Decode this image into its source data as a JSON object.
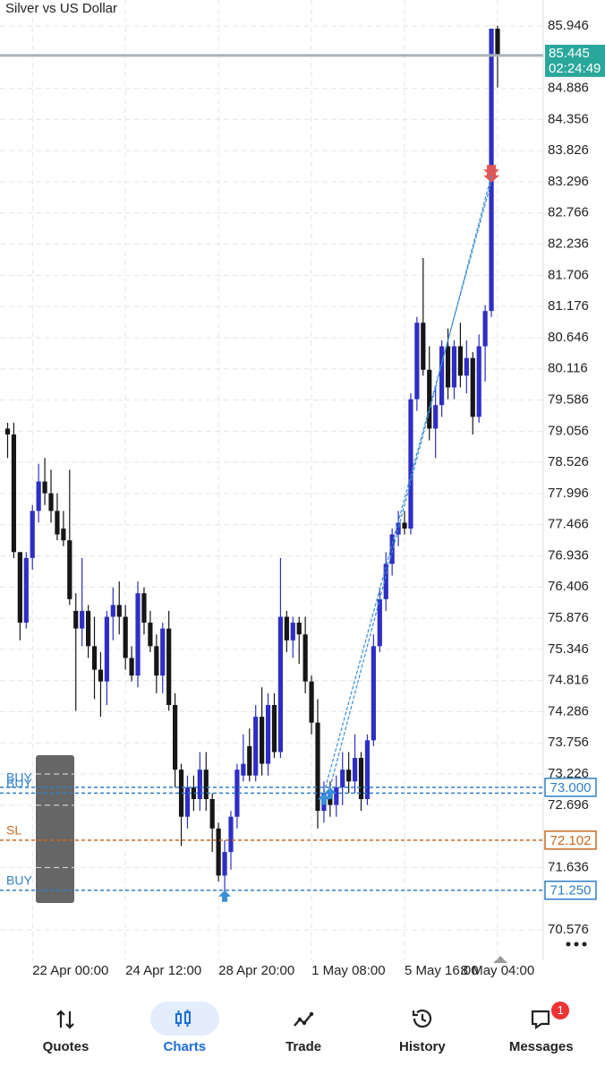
{
  "chart_data": {
    "type": "candlestick",
    "title": "Silver vs US Dollar",
    "categories": [
      null,
      null,
      null,
      null,
      "22 Apr 00:00",
      null,
      null,
      null,
      null,
      null,
      null,
      null,
      null,
      null,
      null,
      null,
      null,
      null,
      null,
      "24 Apr 12:00",
      null,
      null,
      null,
      null,
      null,
      null,
      null,
      null,
      null,
      null,
      null,
      null,
      null,
      null,
      "28 Apr 20:00",
      null,
      null,
      null,
      null,
      null,
      null,
      null,
      null,
      null,
      null,
      null,
      null,
      null,
      null,
      "1 May 08:00",
      null,
      null,
      null,
      null,
      null,
      null,
      null,
      null,
      null,
      null,
      null,
      null,
      null,
      null,
      "5 May 16:00",
      null,
      null,
      null,
      null,
      null,
      null,
      null,
      null,
      null,
      null,
      null,
      null,
      null,
      null,
      "8 May 04:00"
    ],
    "open": [
      79.1,
      79.0,
      77.0,
      75.8,
      76.9,
      77.7,
      78.2,
      78.0,
      77.7,
      77.4,
      77.2,
      76.0,
      75.7,
      76.0,
      75.4,
      75.0,
      74.8,
      75.9,
      76.1,
      75.9,
      75.2,
      74.9,
      76.3,
      75.8,
      75.4,
      74.9,
      75.7,
      74.4,
      73.3,
      72.5,
      73.0,
      72.8,
      73.3,
      72.8,
      72.3,
      71.5,
      71.9,
      72.5,
      73.2,
      73.7,
      73.2,
      74.2,
      73.4,
      74.4,
      73.6,
      75.9,
      75.5,
      75.8,
      75.6,
      74.8,
      74.1,
      72.6,
      72.9,
      72.7,
      73.0,
      73.3,
      73.1,
      73.5,
      72.8,
      73.8,
      75.4,
      76.2,
      76.8,
      77.3,
      77.5,
      77.4,
      79.6,
      80.9,
      80.1,
      79.1,
      79.5,
      80.5,
      79.8,
      80.5,
      80.0,
      80.3,
      79.3,
      80.5,
      81.1,
      85.9
    ],
    "high": [
      79.2,
      79.2,
      77.0,
      77.0,
      77.8,
      78.5,
      78.6,
      78.4,
      78.0,
      77.7,
      78.4,
      76.3,
      76.9,
      76.1,
      75.9,
      75.3,
      76.0,
      76.4,
      76.5,
      76.1,
      75.4,
      76.5,
      76.4,
      76.0,
      75.6,
      75.8,
      76.0,
      74.6,
      73.4,
      73.2,
      73.2,
      73.6,
      73.6,
      72.9,
      72.4,
      72.1,
      72.6,
      73.4,
      73.9,
      74.0,
      74.4,
      74.7,
      74.6,
      74.6,
      76.9,
      76.0,
      75.9,
      75.9,
      75.9,
      74.9,
      74.5,
      73.1,
      73.1,
      73.2,
      73.6,
      73.6,
      73.9,
      73.6,
      73.9,
      75.6,
      76.4,
      77.0,
      77.4,
      77.7,
      77.7,
      79.7,
      81.0,
      82.0,
      80.5,
      79.8,
      80.6,
      80.8,
      80.6,
      80.9,
      80.6,
      80.4,
      80.7,
      81.2,
      85.9,
      85.95
    ],
    "low": [
      78.6,
      76.9,
      75.5,
      75.7,
      76.7,
      77.5,
      77.8,
      77.5,
      77.2,
      77.1,
      76.1,
      74.3,
      75.4,
      75.2,
      74.5,
      74.2,
      74.4,
      75.5,
      75.6,
      75.0,
      74.8,
      74.7,
      75.6,
      75.3,
      74.6,
      74.6,
      74.3,
      73.0,
      72.0,
      72.3,
      72.6,
      72.6,
      72.6,
      71.9,
      71.4,
      71.2,
      71.6,
      72.3,
      73.1,
      73.1,
      73.1,
      73.2,
      73.2,
      73.5,
      73.5,
      75.3,
      75.2,
      75.1,
      74.6,
      73.9,
      72.3,
      72.4,
      72.5,
      72.5,
      72.7,
      72.9,
      72.9,
      72.6,
      72.7,
      73.7,
      75.3,
      76.0,
      76.6,
      77.1,
      77.3,
      77.3,
      79.4,
      80.0,
      78.9,
      78.6,
      79.3,
      79.6,
      79.6,
      79.8,
      79.7,
      79.0,
      79.2,
      79.9,
      81.0,
      84.9
    ],
    "close": [
      79.0,
      77.0,
      75.8,
      76.9,
      77.7,
      78.2,
      78.0,
      77.7,
      77.3,
      77.2,
      76.2,
      75.7,
      76.0,
      75.4,
      75.0,
      74.8,
      75.9,
      76.1,
      75.9,
      75.2,
      74.9,
      76.3,
      75.8,
      75.4,
      74.9,
      75.7,
      74.4,
      73.3,
      72.5,
      73.0,
      72.8,
      73.3,
      72.8,
      72.3,
      71.5,
      71.9,
      72.5,
      73.3,
      73.4,
      73.2,
      74.2,
      73.4,
      74.4,
      73.6,
      75.9,
      75.5,
      75.8,
      75.6,
      74.8,
      74.1,
      72.6,
      72.9,
      72.7,
      73.0,
      73.3,
      73.1,
      73.5,
      72.8,
      73.8,
      75.4,
      76.2,
      76.8,
      77.3,
      77.5,
      77.4,
      79.6,
      80.9,
      80.1,
      79.1,
      79.5,
      80.5,
      79.8,
      80.5,
      80.0,
      80.3,
      79.3,
      80.5,
      81.1,
      85.9,
      85.445
    ],
    "up_color": "#2e2ec4",
    "down_color": "#161616",
    "ylim": [
      70.058,
      86.388
    ],
    "yticks": [
      85.946,
      84.886,
      84.356,
      83.826,
      83.296,
      82.766,
      82.236,
      81.706,
      81.176,
      80.646,
      80.116,
      79.586,
      79.056,
      78.526,
      77.996,
      77.466,
      76.936,
      76.406,
      75.876,
      75.346,
      74.816,
      74.286,
      73.756,
      73.226,
      72.696,
      71.636,
      70.576
    ],
    "grid": true,
    "current_price": {
      "value": 85.445,
      "countdown": "02:24:49",
      "color": "#2aa79b"
    },
    "levels": [
      {
        "name": "BUY",
        "value": 73.0,
        "label": "73.000",
        "color": "#2f7fc8"
      },
      {
        "name": "BUY",
        "value": 72.9,
        "color": "#2f7fc8"
      },
      {
        "name": "SL",
        "value": 72.102,
        "label": "72.102",
        "color": "#c8691e"
      },
      {
        "name": "BUY",
        "value": 71.25,
        "label": "71.250",
        "color": "#2f7fc8"
      }
    ],
    "trades": [
      {
        "open_index": 35,
        "open": 71.25
      },
      {
        "open_index": 51,
        "open": 72.9,
        "close_index": 78,
        "close": 83.3
      },
      {
        "open_index": 52,
        "open": 73.0,
        "close_index": 78,
        "close": 83.4
      }
    ]
  },
  "nav": {
    "items": [
      "Quotes",
      "Charts",
      "Trade",
      "History",
      "Messages"
    ],
    "active": 1,
    "badge": "1"
  }
}
